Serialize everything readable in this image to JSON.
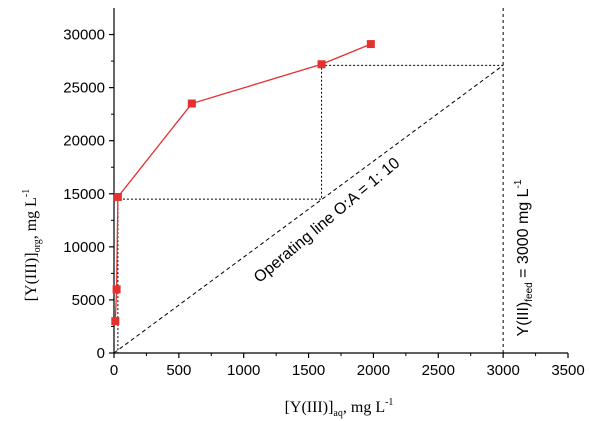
{
  "chart_data": {
    "type": "scatter",
    "x_ticks": [
      0,
      500,
      1000,
      1500,
      2000,
      2500,
      3000,
      3500
    ],
    "y_ticks": [
      0,
      5000,
      10000,
      15000,
      20000,
      25000,
      30000
    ],
    "xlim": [
      0,
      3500
    ],
    "ylim": [
      0,
      32500
    ],
    "grid": false,
    "series": [
      {
        "color": "#e53030",
        "x": [
          10,
          20,
          30,
          600,
          1600,
          1980
        ],
        "y": [
          3000,
          6000,
          14700,
          23500,
          27200,
          29100
        ]
      }
    ],
    "operating_line": {
      "style": "dashed",
      "x": [
        0,
        3000
      ],
      "y": [
        0,
        27100
      ],
      "label": "Operating line O:A = 1: 10"
    },
    "feed_line": {
      "style": "dashed",
      "x": 3000,
      "label_main": "Y(III)",
      "label_sub": "feed",
      "label_rest": " = 3000 mg L",
      "label_sup": "-1"
    },
    "steps": {
      "style": "dotted",
      "points": [
        [
          3000,
          27100
        ],
        [
          1600,
          27100
        ],
        [
          1600,
          14500
        ],
        [
          30,
          14500
        ],
        [
          30,
          0
        ]
      ]
    },
    "xlabel": {
      "main": "[Y(III)]",
      "sub": "aq",
      "rest": ", mg L",
      "sup": "-1"
    },
    "ylabel": {
      "main": "[Y(III)]",
      "sub": "org",
      "rest": ", mg L",
      "sup": "-1"
    }
  }
}
